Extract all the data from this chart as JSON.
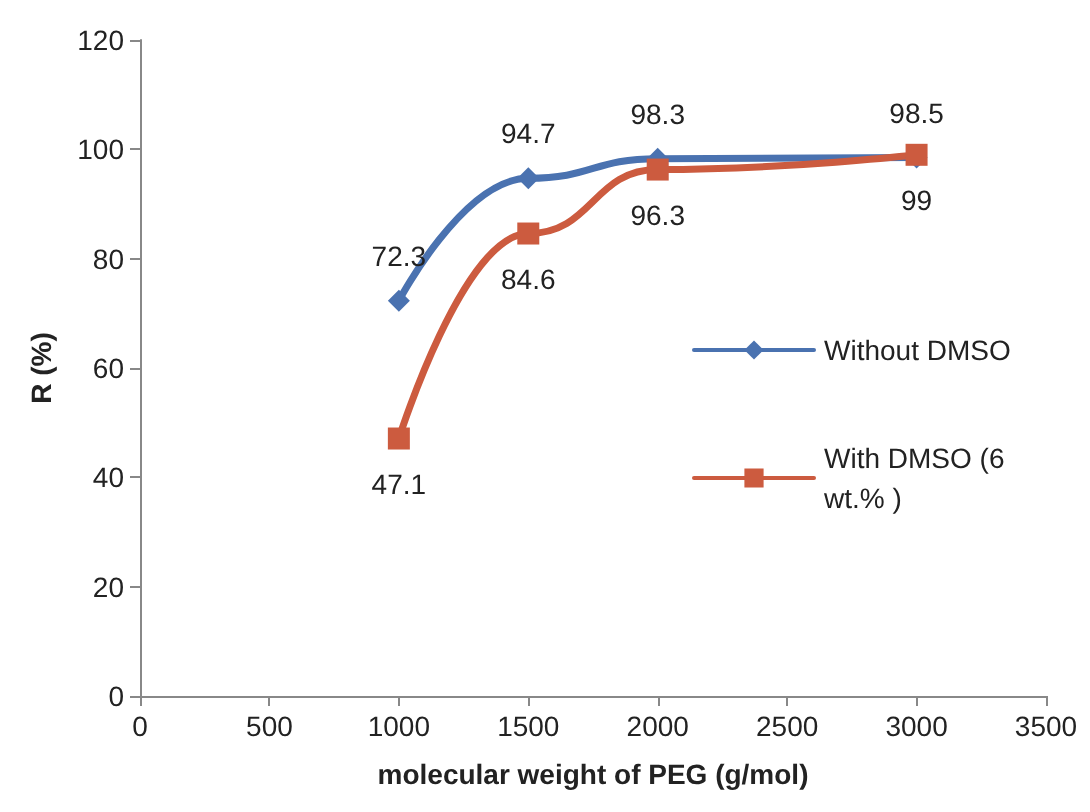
{
  "chart_data": {
    "type": "line",
    "xlabel": "molecular weight of PEG (g/mol)",
    "ylabel": "R (%)",
    "x": [
      1000,
      1500,
      2000,
      3000
    ],
    "series": [
      {
        "name": "Without DMSO",
        "color": "#4a72b0",
        "marker": "diamond",
        "values": [
          72.3,
          94.7,
          98.3,
          98.5
        ]
      },
      {
        "name": "With DMSO (6 wt.% )",
        "color": "#cc5b3f",
        "marker": "square",
        "values": [
          47.1,
          84.6,
          96.3,
          99
        ]
      }
    ],
    "xlim": [
      0,
      3500
    ],
    "xticks": [
      0,
      500,
      1000,
      1500,
      2000,
      2500,
      3000,
      3500
    ],
    "ylim": [
      0,
      120
    ],
    "yticks": [
      0,
      20,
      40,
      60,
      80,
      100,
      120
    ],
    "grid": false,
    "legend": "right",
    "data_labels": true,
    "line_style": "solid"
  }
}
